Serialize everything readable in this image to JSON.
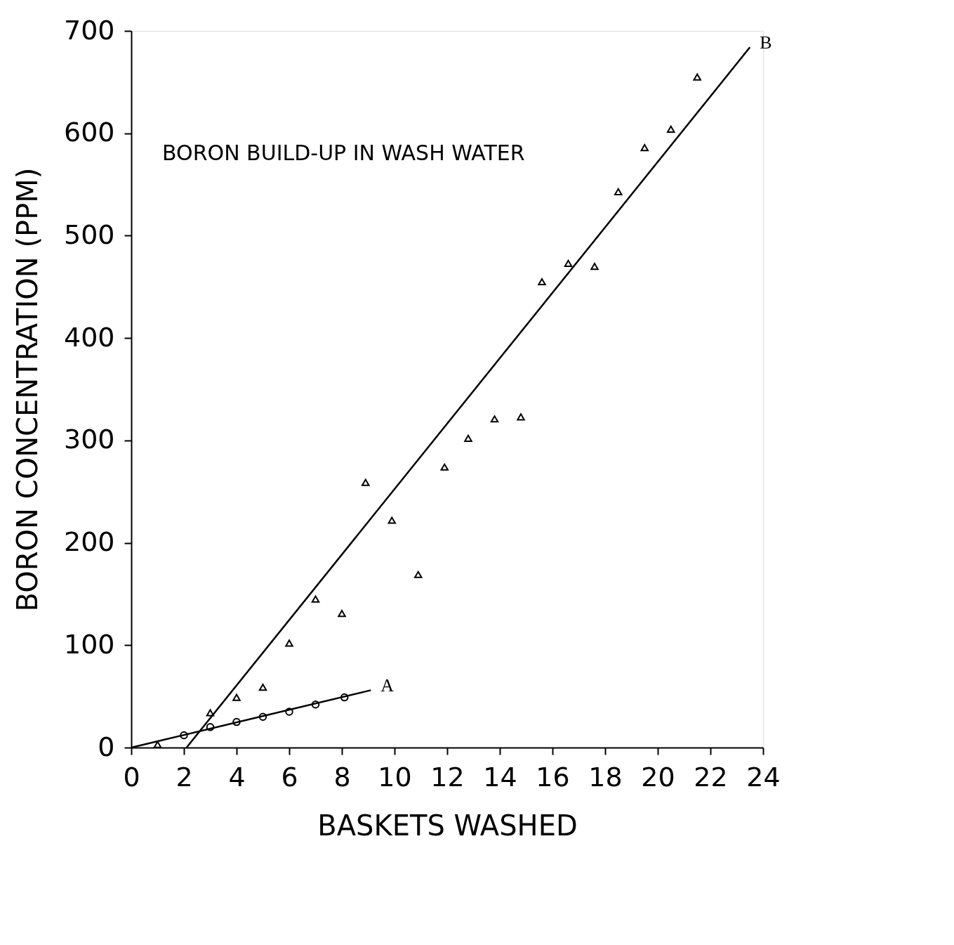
{
  "chart_data": {
    "type": "scatter",
    "title": "BORON BUILD-UP IN WASH WATER",
    "xlabel": "BASKETS WASHED",
    "ylabel": "BORON CONCENTRATION (PPM)",
    "xlim": [
      0,
      24
    ],
    "ylim": [
      0,
      700
    ],
    "xticks": [
      0,
      2,
      4,
      6,
      8,
      10,
      12,
      14,
      16,
      18,
      20,
      22,
      24
    ],
    "yticks": [
      0,
      100,
      200,
      300,
      400,
      500,
      600,
      700
    ],
    "grid": false,
    "series": [
      {
        "marker": "triangle",
        "color": "#000000",
        "x": [
          1.0,
          3.0,
          4.0,
          5.0,
          6.0,
          7.0,
          8.0,
          8.9,
          9.9,
          10.9,
          11.9,
          12.8,
          13.8,
          14.8,
          15.6,
          16.6,
          17.6,
          18.5,
          19.5,
          20.5,
          21.5
        ],
        "values": [
          3,
          34,
          49,
          59,
          102,
          145,
          131,
          259,
          222,
          169,
          274,
          302,
          321,
          323,
          455,
          473,
          470,
          543,
          586,
          604,
          655
        ]
      },
      {
        "marker": "circle",
        "color": "#000000",
        "x": [
          2.0,
          3.0,
          4.0,
          5.0,
          6.0,
          7.0,
          8.1
        ],
        "values": [
          12,
          20,
          25,
          30,
          35,
          42,
          49
        ]
      },
      {
        "type": "line",
        "color": "#000000",
        "x": [
          0,
          9.1
        ],
        "values": [
          0,
          56
        ]
      },
      {
        "type": "line",
        "color": "#000000",
        "x": [
          2.1,
          23.5
        ],
        "values": [
          0,
          684
        ]
      }
    ],
    "annotations": [
      {
        "text": "A",
        "x": 9.1,
        "y": 56
      },
      {
        "text": "B",
        "x": 23.5,
        "y": 684
      }
    ]
  }
}
